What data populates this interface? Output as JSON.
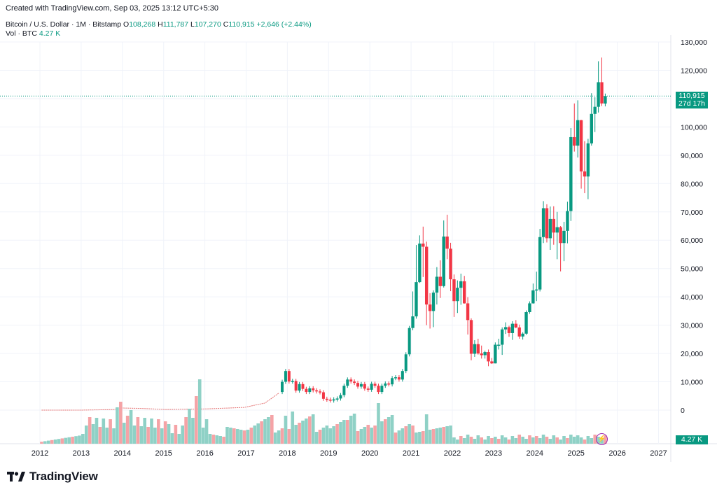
{
  "header": {
    "created": "Created with TradingView.com, Sep 03, 2025 13:12 UTC+5:30",
    "symbol": "Bitcoin / U.S. Dollar · 1M · Bitstamp",
    "o_label": "O",
    "o_value": "108,268",
    "h_label": "H",
    "h_value": "111,787",
    "l_label": "L",
    "l_value": "107,270",
    "c_label": "C",
    "c_value": "110,915",
    "change": "+2,646 (+2.44%)",
    "vol_label": "Vol · BTC",
    "vol_value": "4.27 K"
  },
  "price_badge": {
    "price": "110,915",
    "countdown": "27d 17h"
  },
  "volume_badge": "4.27 K",
  "icons": {
    "logo": "tradingview-logo-icon",
    "alert": "lightning-icon"
  },
  "brand": "TradingView",
  "colors": {
    "up": "#089981",
    "down": "#f23645",
    "vol_up": "#8fd1c6",
    "vol_down": "#f5a3a6"
  },
  "chart_data": {
    "type": "candlestick",
    "title": "Bitcoin / U.S. Dollar · 1M · Bitstamp",
    "y_ticks": [
      "130,000",
      "120,000",
      "110,000",
      "100,000",
      "90,000",
      "80,000",
      "70,000",
      "60,000",
      "50,000",
      "40,000",
      "30,000",
      "20,000",
      "10,000",
      "0"
    ],
    "ylim": [
      -10000,
      130000
    ],
    "x_ticks": [
      "2012",
      "2013",
      "2014",
      "2015",
      "2016",
      "2017",
      "2018",
      "2019",
      "2020",
      "2021",
      "2022",
      "2023",
      "2024",
      "2025",
      "2026",
      "2027"
    ],
    "last_price": 110915,
    "candles": [
      {
        "t": "2021-01",
        "o": 29000,
        "h": 41900,
        "l": 28200,
        "c": 33100
      },
      {
        "t": "2021-02",
        "o": 33100,
        "h": 58300,
        "l": 32300,
        "c": 45200
      },
      {
        "t": "2021-03",
        "o": 45200,
        "h": 61700,
        "l": 44900,
        "c": 58800
      },
      {
        "t": "2021-04",
        "o": 58800,
        "h": 64800,
        "l": 47000,
        "c": 57700
      },
      {
        "t": "2021-05",
        "o": 57700,
        "h": 59500,
        "l": 30000,
        "c": 37300
      },
      {
        "t": "2021-06",
        "o": 37300,
        "h": 41300,
        "l": 28800,
        "c": 35000
      },
      {
        "t": "2021-07",
        "o": 35000,
        "h": 42300,
        "l": 29300,
        "c": 41500
      },
      {
        "t": "2021-08",
        "o": 41500,
        "h": 50500,
        "l": 37300,
        "c": 47100
      },
      {
        "t": "2021-09",
        "o": 47100,
        "h": 52900,
        "l": 39600,
        "c": 43800
      },
      {
        "t": "2021-10",
        "o": 43800,
        "h": 67000,
        "l": 43300,
        "c": 61300
      },
      {
        "t": "2021-11",
        "o": 61300,
        "h": 69000,
        "l": 53300,
        "c": 57000
      },
      {
        "t": "2021-12",
        "o": 57000,
        "h": 59100,
        "l": 42000,
        "c": 46200
      },
      {
        "t": "2022-01",
        "o": 46200,
        "h": 47900,
        "l": 32900,
        "c": 38500
      },
      {
        "t": "2022-02",
        "o": 38500,
        "h": 45800,
        "l": 34300,
        "c": 43200
      },
      {
        "t": "2022-03",
        "o": 43200,
        "h": 48200,
        "l": 37200,
        "c": 45500
      },
      {
        "t": "2022-04",
        "o": 45500,
        "h": 47400,
        "l": 37600,
        "c": 37700
      },
      {
        "t": "2022-05",
        "o": 37700,
        "h": 39900,
        "l": 26700,
        "c": 31800
      },
      {
        "t": "2022-06",
        "o": 31800,
        "h": 32400,
        "l": 17600,
        "c": 19900
      },
      {
        "t": "2022-07",
        "o": 19900,
        "h": 24700,
        "l": 18800,
        "c": 23300
      },
      {
        "t": "2022-08",
        "o": 23300,
        "h": 25200,
        "l": 19600,
        "c": 20000
      },
      {
        "t": "2022-09",
        "o": 20000,
        "h": 22800,
        "l": 18200,
        "c": 19400
      },
      {
        "t": "2022-10",
        "o": 19400,
        "h": 21000,
        "l": 18200,
        "c": 20500
      },
      {
        "t": "2022-11",
        "o": 20500,
        "h": 21400,
        "l": 15500,
        "c": 17200
      },
      {
        "t": "2022-12",
        "o": 17200,
        "h": 18400,
        "l": 16300,
        "c": 16500
      },
      {
        "t": "2023-01",
        "o": 16500,
        "h": 23900,
        "l": 16500,
        "c": 23100
      },
      {
        "t": "2023-02",
        "o": 23100,
        "h": 25200,
        "l": 21400,
        "c": 23100
      },
      {
        "t": "2023-03",
        "o": 23100,
        "h": 29200,
        "l": 19500,
        "c": 28500
      },
      {
        "t": "2023-04",
        "o": 28500,
        "h": 31000,
        "l": 26900,
        "c": 29300
      },
      {
        "t": "2023-05",
        "o": 29300,
        "h": 29800,
        "l": 25900,
        "c": 27200
      },
      {
        "t": "2023-06",
        "o": 27200,
        "h": 31400,
        "l": 24800,
        "c": 30500
      },
      {
        "t": "2023-07",
        "o": 30500,
        "h": 31800,
        "l": 28900,
        "c": 29200
      },
      {
        "t": "2023-08",
        "o": 29200,
        "h": 30200,
        "l": 25200,
        "c": 26000
      },
      {
        "t": "2023-09",
        "o": 26000,
        "h": 27500,
        "l": 24900,
        "c": 27000
      },
      {
        "t": "2023-10",
        "o": 27000,
        "h": 35200,
        "l": 26600,
        "c": 34600
      },
      {
        "t": "2023-11",
        "o": 34600,
        "h": 38400,
        "l": 34000,
        "c": 37700
      },
      {
        "t": "2023-12",
        "o": 37700,
        "h": 44700,
        "l": 37600,
        "c": 42300
      },
      {
        "t": "2024-01",
        "o": 42300,
        "h": 48900,
        "l": 38500,
        "c": 42600
      },
      {
        "t": "2024-02",
        "o": 42600,
        "h": 64000,
        "l": 41900,
        "c": 61100
      },
      {
        "t": "2024-03",
        "o": 61100,
        "h": 73800,
        "l": 59000,
        "c": 71300
      },
      {
        "t": "2024-04",
        "o": 71300,
        "h": 72700,
        "l": 59200,
        "c": 60700
      },
      {
        "t": "2024-05",
        "o": 60700,
        "h": 71900,
        "l": 56600,
        "c": 67500
      },
      {
        "t": "2024-06",
        "o": 67500,
        "h": 72000,
        "l": 58400,
        "c": 62700
      },
      {
        "t": "2024-07",
        "o": 62700,
        "h": 70000,
        "l": 53300,
        "c": 64600
      },
      {
        "t": "2024-08",
        "o": 64600,
        "h": 65000,
        "l": 49000,
        "c": 59000
      },
      {
        "t": "2024-09",
        "o": 59000,
        "h": 66500,
        "l": 52600,
        "c": 63300
      },
      {
        "t": "2024-10",
        "o": 63300,
        "h": 73600,
        "l": 58900,
        "c": 70300
      },
      {
        "t": "2024-11",
        "o": 70300,
        "h": 99600,
        "l": 66800,
        "c": 96400
      },
      {
        "t": "2024-12",
        "o": 96400,
        "h": 108300,
        "l": 91300,
        "c": 93400
      },
      {
        "t": "2025-01",
        "o": 93400,
        "h": 109400,
        "l": 89200,
        "c": 102400
      },
      {
        "t": "2025-02",
        "o": 102400,
        "h": 102500,
        "l": 78200,
        "c": 84300
      },
      {
        "t": "2025-03",
        "o": 84300,
        "h": 95000,
        "l": 76600,
        "c": 82500
      },
      {
        "t": "2025-04",
        "o": 82500,
        "h": 95800,
        "l": 74500,
        "c": 94200
      },
      {
        "t": "2025-05",
        "o": 94200,
        "h": 111900,
        "l": 93400,
        "c": 104600
      },
      {
        "t": "2025-06",
        "o": 104600,
        "h": 110500,
        "l": 98200,
        "c": 107100
      },
      {
        "t": "2025-07",
        "o": 107100,
        "h": 123200,
        "l": 105100,
        "c": 115800
      },
      {
        "t": "2025-08",
        "o": 115800,
        "h": 124500,
        "l": 107400,
        "c": 108300
      },
      {
        "t": "2025-09",
        "o": 108268,
        "h": 111787,
        "l": 107270,
        "c": 110915
      }
    ],
    "volume": {
      "note": "volume pane at bottom, relative heights",
      "last": "4.27 K"
    }
  }
}
